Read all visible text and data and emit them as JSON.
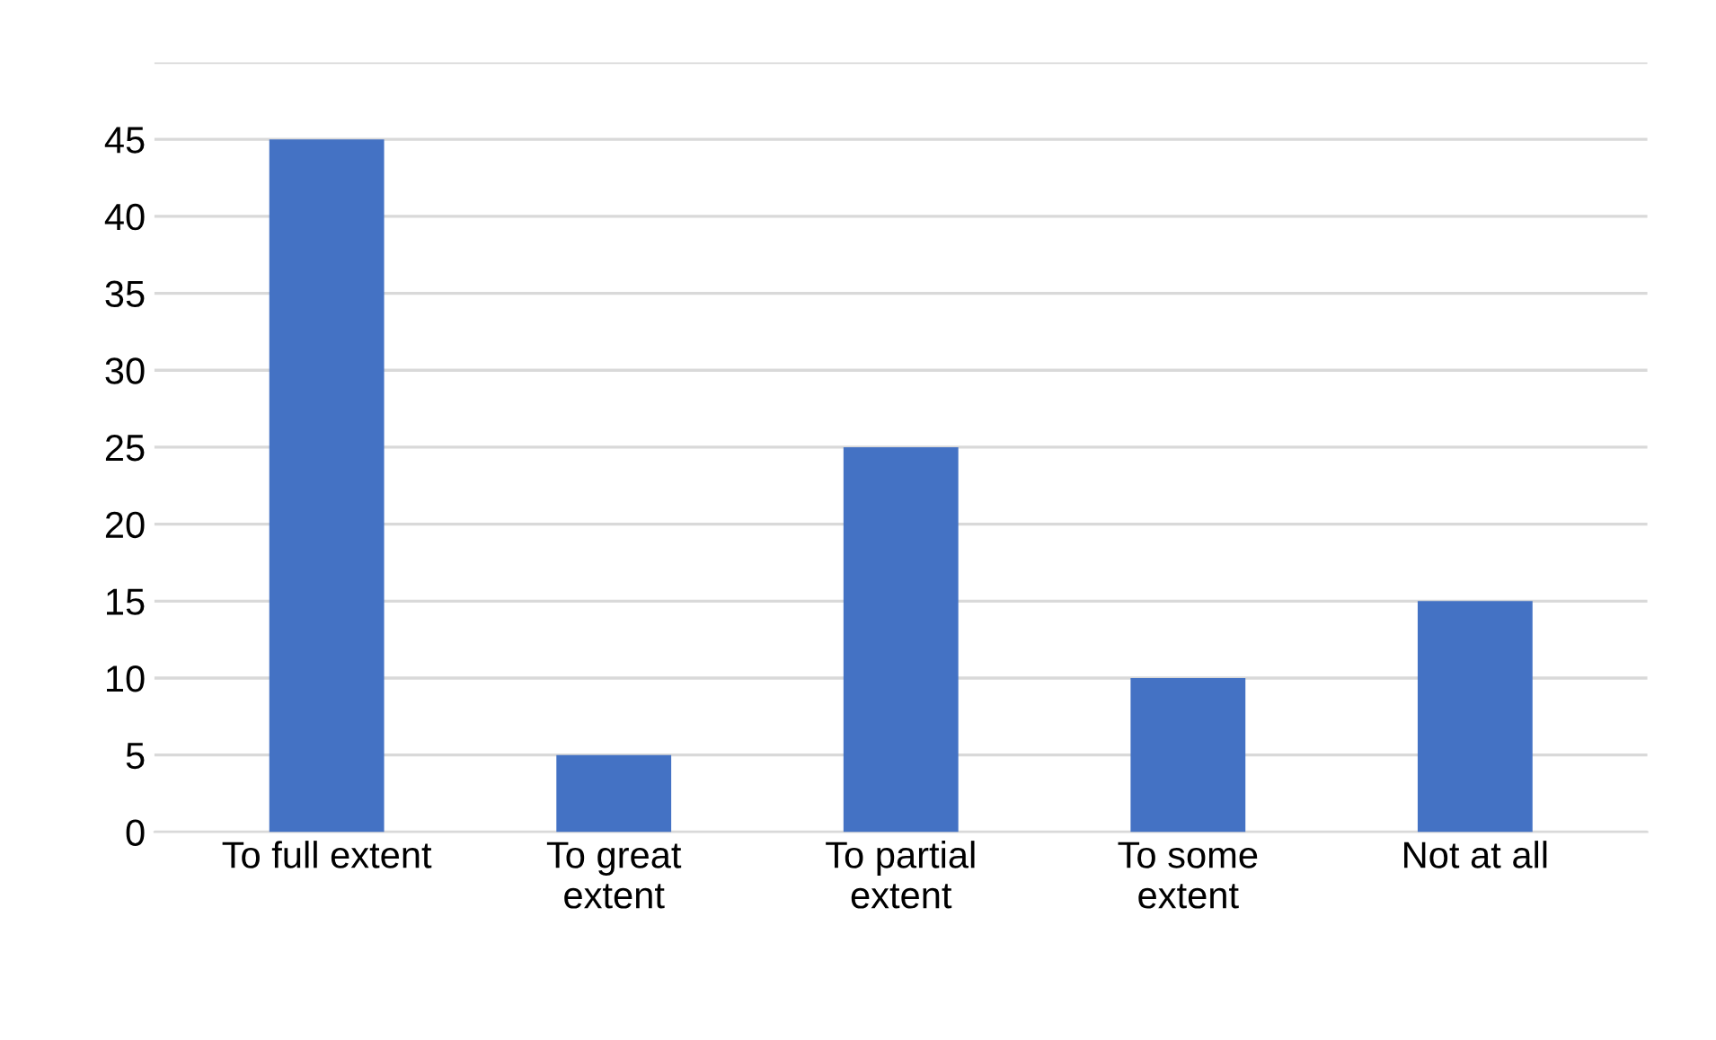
{
  "chart_data": {
    "type": "bar",
    "categories": [
      "To full extent",
      "To great\nextent",
      "To partial\nextent",
      "To some\nextent",
      "Not at all"
    ],
    "values": [
      45,
      5,
      25,
      10,
      15
    ],
    "color": "#4472c4",
    "ylim": [
      0,
      50
    ],
    "yticks": [
      0,
      5,
      10,
      15,
      20,
      25,
      30,
      35,
      40,
      45,
      {
        "value": 50,
        "label": null
      }
    ],
    "grid": "y"
  }
}
